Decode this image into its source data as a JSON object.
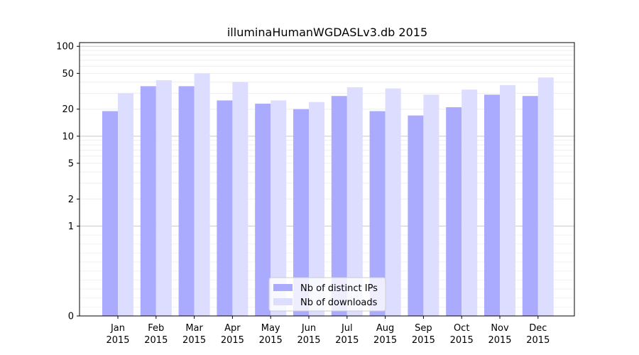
{
  "chart_data": {
    "type": "bar",
    "title": "illuminaHumanWGDASLv3.db 2015",
    "xlabel": "",
    "ylabel": "",
    "y_scale": "symlog",
    "y_ticks": [
      0,
      1,
      2,
      5,
      10,
      20,
      50,
      100
    ],
    "ylim": [
      0,
      110
    ],
    "grid": true,
    "legend_position": "bottom-center",
    "categories": [
      [
        "Jan",
        "2015"
      ],
      [
        "Feb",
        "2015"
      ],
      [
        "Mar",
        "2015"
      ],
      [
        "Apr",
        "2015"
      ],
      [
        "May",
        "2015"
      ],
      [
        "Jun",
        "2015"
      ],
      [
        "Jul",
        "2015"
      ],
      [
        "Aug",
        "2015"
      ],
      [
        "Sep",
        "2015"
      ],
      [
        "Oct",
        "2015"
      ],
      [
        "Nov",
        "2015"
      ],
      [
        "Dec",
        "2015"
      ]
    ],
    "series": [
      {
        "name": "Nb of distinct IPs",
        "color": "#aaaaff",
        "values": [
          19,
          36,
          36,
          25,
          23,
          20,
          28,
          19,
          17,
          21,
          29,
          28
        ]
      },
      {
        "name": "Nb of downloads",
        "color": "#ddddff",
        "values": [
          30,
          42,
          50,
          40,
          25,
          24,
          35,
          34,
          29,
          33,
          37,
          45
        ]
      }
    ]
  }
}
